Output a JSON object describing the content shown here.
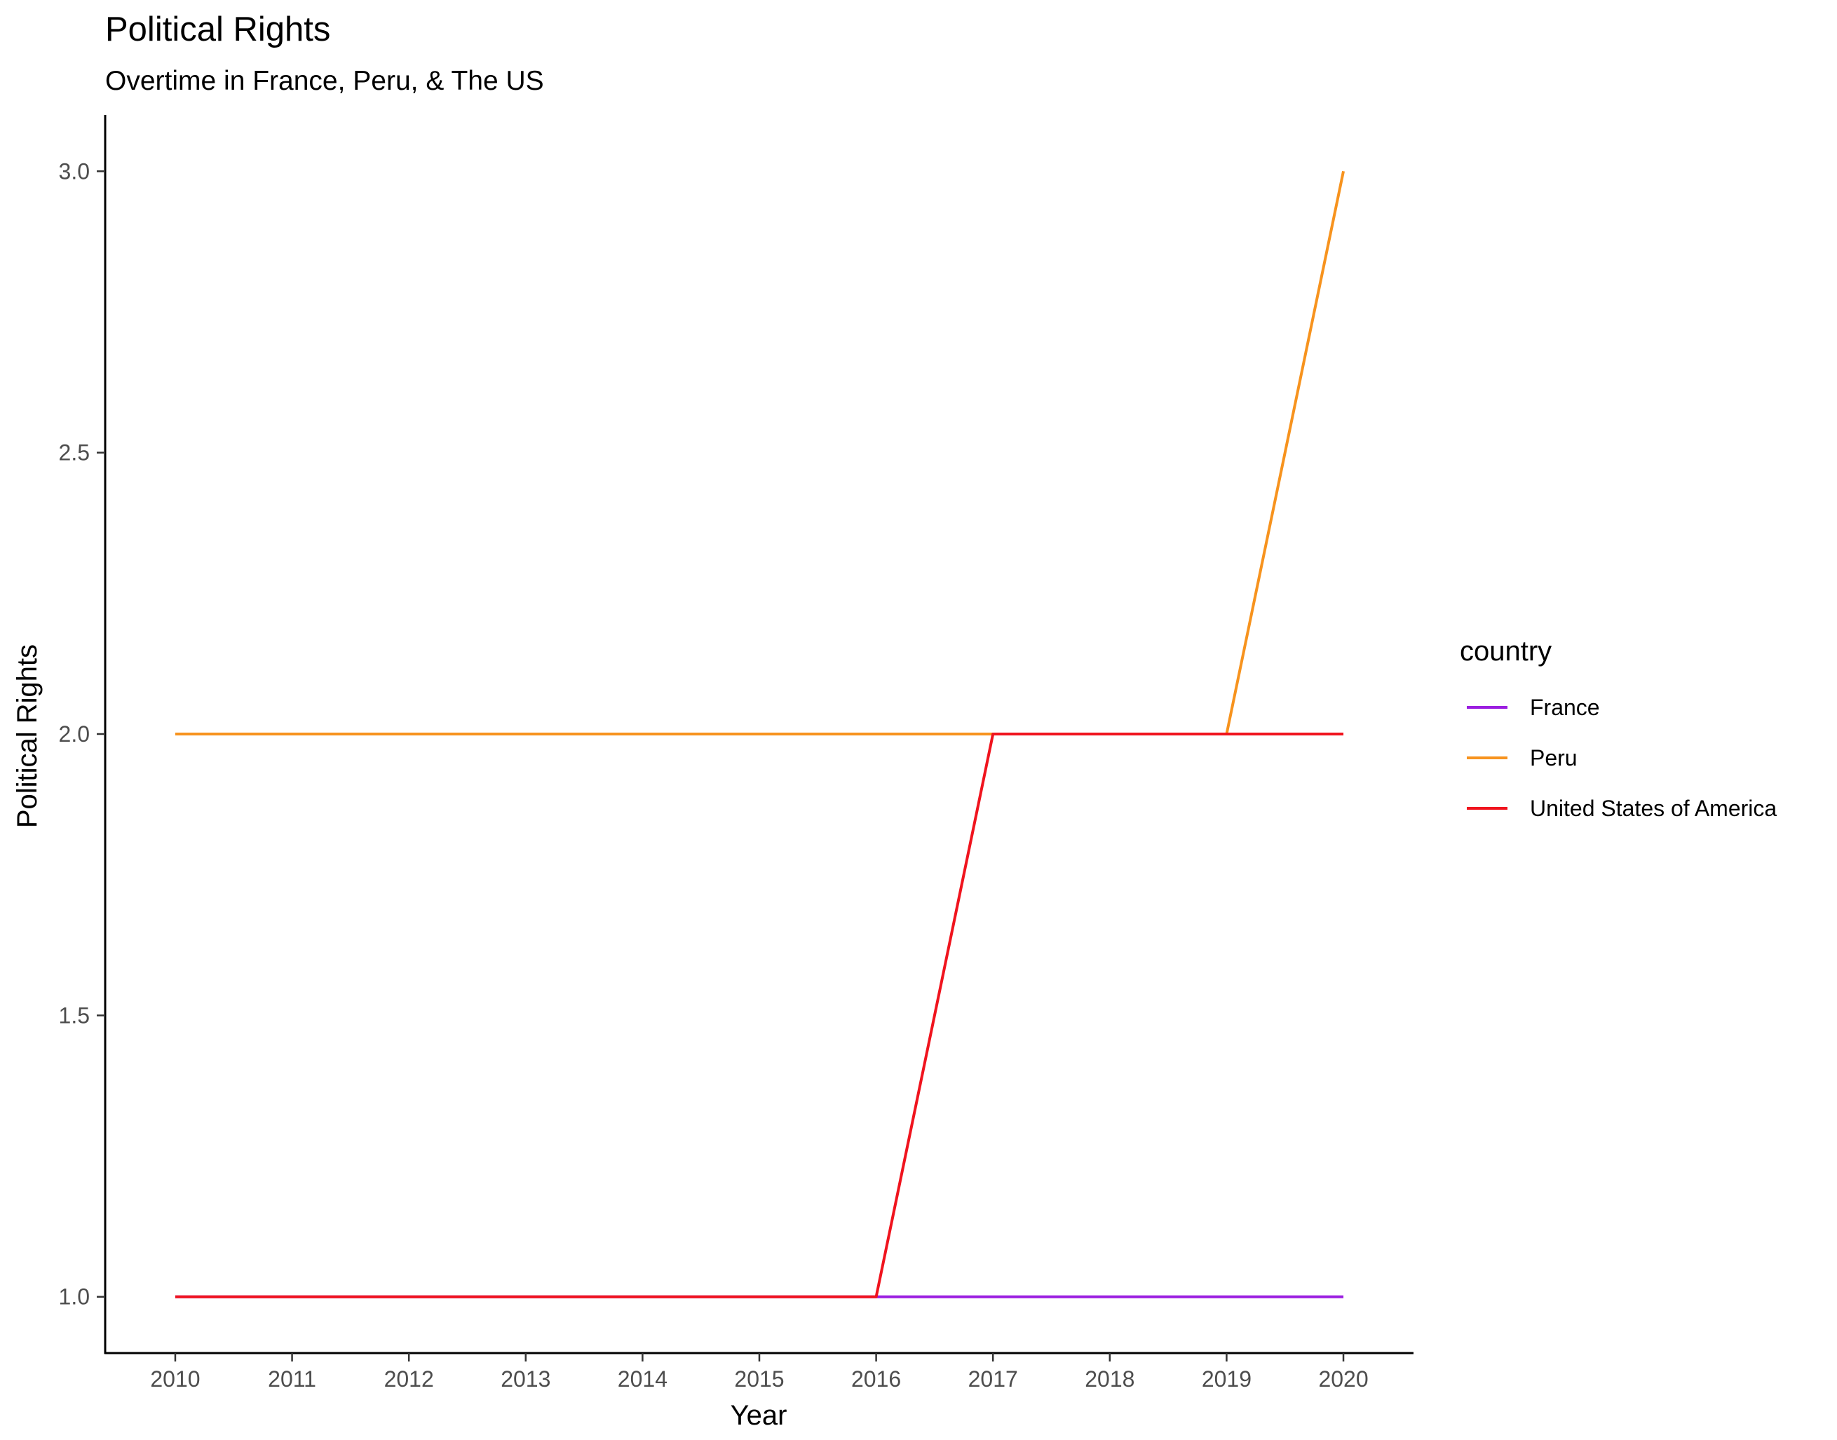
{
  "chart_data": {
    "type": "line",
    "title": "Political Rights",
    "subtitle": "Overtime in France, Peru, & The US",
    "xlabel": "Year",
    "ylabel": "Political Rights",
    "x": [
      2010,
      2011,
      2012,
      2013,
      2014,
      2015,
      2016,
      2017,
      2018,
      2019,
      2020
    ],
    "x_ticks": [
      "2010",
      "2011",
      "2012",
      "2013",
      "2014",
      "2015",
      "2016",
      "2017",
      "2018",
      "2019",
      "2020"
    ],
    "xlim": [
      2009.4,
      2020.6
    ],
    "ylim": [
      0.9,
      3.1
    ],
    "y_ticks": [
      "1.0",
      "1.5",
      "2.0",
      "2.5",
      "3.0"
    ],
    "grid": false,
    "legend": {
      "title": "country",
      "placement": "right"
    },
    "series": [
      {
        "name": "France",
        "color": "#9b1ee0",
        "values": [
          1,
          1,
          1,
          1,
          1,
          1,
          1,
          1,
          1,
          1,
          1
        ]
      },
      {
        "name": "Peru",
        "color": "#f7931e",
        "values": [
          2,
          2,
          2,
          2,
          2,
          2,
          2,
          2,
          2,
          2,
          3
        ]
      },
      {
        "name": "United States of America",
        "color": "#f0141e",
        "values": [
          1,
          1,
          1,
          1,
          1,
          1,
          1,
          2,
          2,
          2,
          2
        ]
      }
    ]
  }
}
